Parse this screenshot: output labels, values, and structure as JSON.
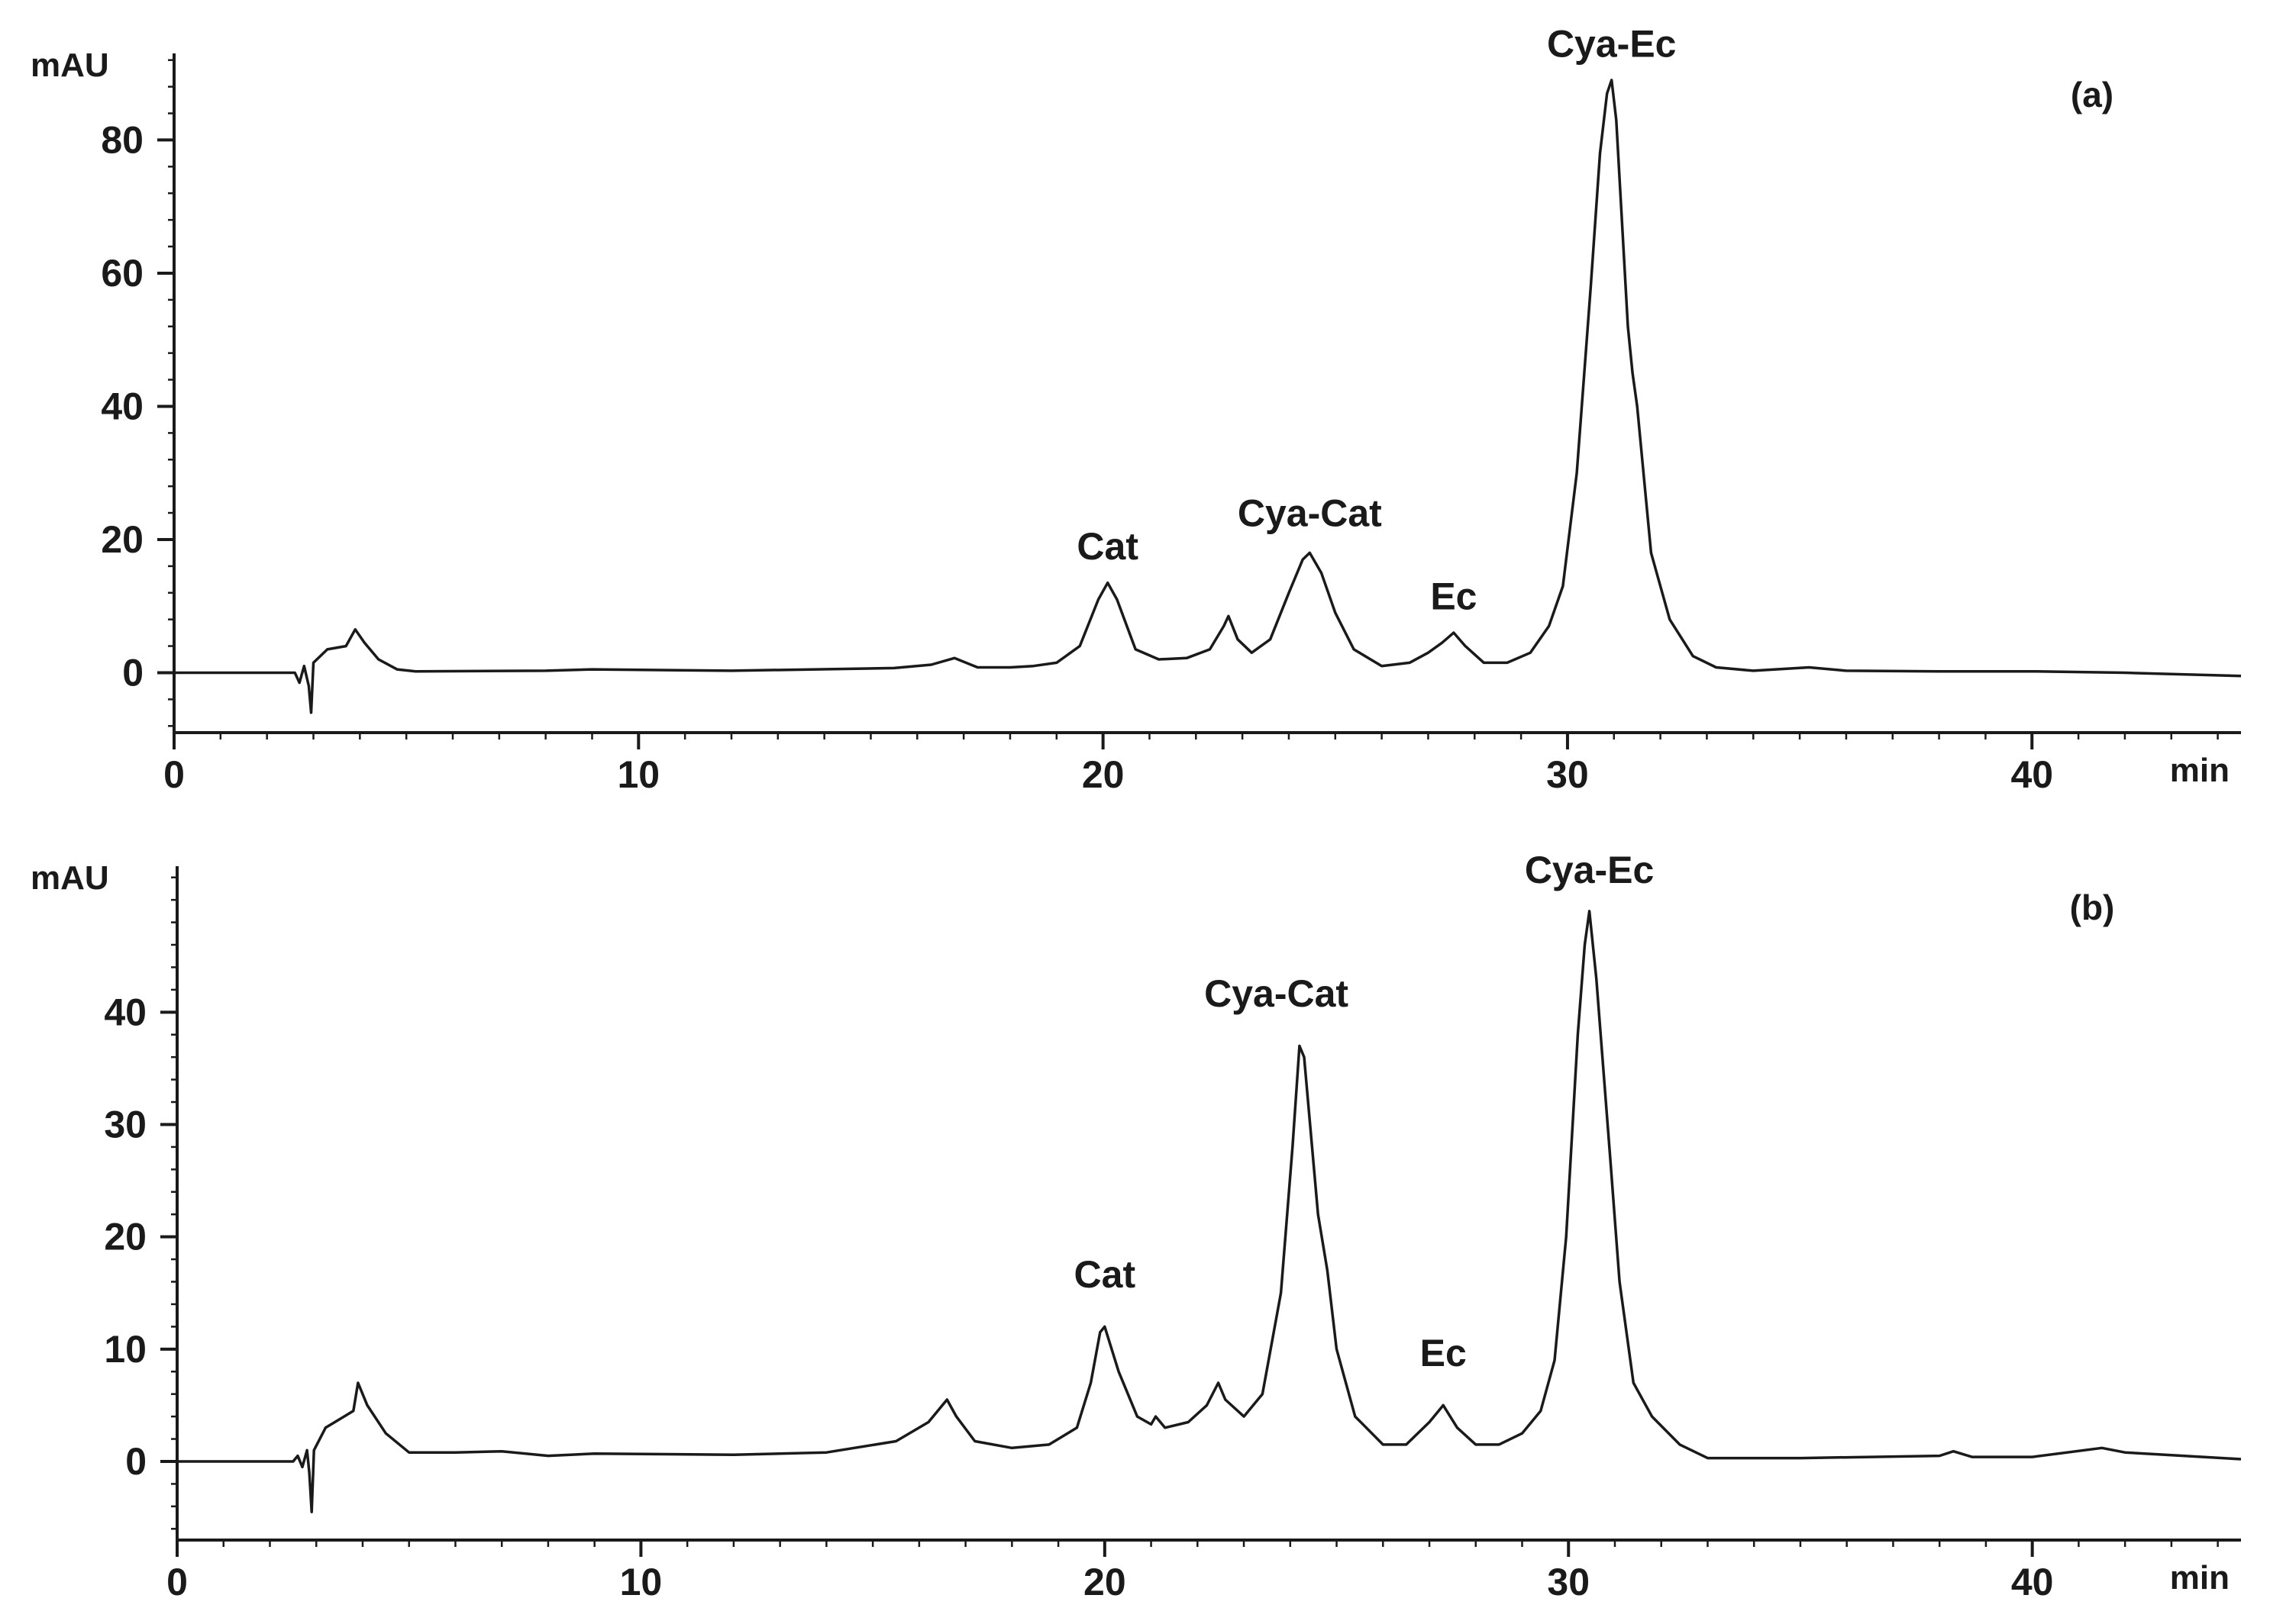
{
  "chart_data": [
    {
      "type": "line",
      "panel_label": "(a)",
      "xlabel": "min",
      "ylabel": "mAU",
      "xlim": [
        0,
        44.5
      ],
      "ylim": [
        -9,
        93
      ],
      "xticks": [
        0,
        10,
        20,
        30,
        40
      ],
      "yticks": [
        0,
        20,
        40,
        60,
        80
      ],
      "xtick_labels": [
        "0",
        "10",
        "20",
        "30",
        "40"
      ],
      "ytick_labels": [
        "0",
        "20",
        "40",
        "60",
        "80"
      ],
      "x_minor_step": 1,
      "y_minor_step": 4,
      "grid": false,
      "baseline": [
        [
          0,
          0
        ],
        [
          2.6,
          0
        ],
        [
          2.7,
          -1.5
        ],
        [
          2.8,
          1
        ],
        [
          2.9,
          -2
        ],
        [
          2.95,
          -6
        ],
        [
          3.0,
          1.5
        ],
        [
          3.3,
          3.5
        ],
        [
          3.7,
          4
        ],
        [
          3.9,
          6.5
        ],
        [
          4.1,
          4.5
        ],
        [
          4.4,
          2
        ],
        [
          4.8,
          0.5
        ],
        [
          5.2,
          0.2
        ],
        [
          8,
          0.3
        ],
        [
          9,
          0.5
        ],
        [
          12,
          0.3
        ],
        [
          15.5,
          0.7
        ],
        [
          16.3,
          1.2
        ],
        [
          16.8,
          2.2
        ],
        [
          17.3,
          0.8
        ],
        [
          18,
          0.8
        ],
        [
          18.5,
          1
        ],
        [
          19,
          1.5
        ],
        [
          19.5,
          4
        ],
        [
          19.9,
          11
        ],
        [
          20.1,
          13.5
        ],
        [
          20.3,
          11
        ],
        [
          20.7,
          3.5
        ],
        [
          21.2,
          2
        ],
        [
          21.8,
          2.2
        ],
        [
          22.3,
          3.5
        ],
        [
          22.6,
          7
        ],
        [
          22.7,
          8.5
        ],
        [
          22.9,
          5
        ],
        [
          23.2,
          3
        ],
        [
          23.6,
          5
        ],
        [
          24.0,
          12
        ],
        [
          24.3,
          17
        ],
        [
          24.45,
          18
        ],
        [
          24.7,
          15
        ],
        [
          25.0,
          9
        ],
        [
          25.4,
          3.5
        ],
        [
          26.0,
          1
        ],
        [
          26.6,
          1.5
        ],
        [
          27.0,
          3
        ],
        [
          27.3,
          4.5
        ],
        [
          27.55,
          6
        ],
        [
          27.8,
          4
        ],
        [
          28.2,
          1.5
        ],
        [
          28.7,
          1.5
        ],
        [
          29.2,
          3
        ],
        [
          29.6,
          7
        ],
        [
          29.9,
          13
        ],
        [
          30.2,
          30
        ],
        [
          30.5,
          58
        ],
        [
          30.7,
          78
        ],
        [
          30.85,
          87
        ],
        [
          30.95,
          89
        ],
        [
          31.05,
          83
        ],
        [
          31.3,
          52
        ],
        [
          31.4,
          45
        ],
        [
          31.5,
          40
        ],
        [
          31.8,
          18
        ],
        [
          32.2,
          8
        ],
        [
          32.7,
          2.5
        ],
        [
          33.2,
          0.8
        ],
        [
          34,
          0.3
        ],
        [
          35.2,
          0.8
        ],
        [
          36,
          0.3
        ],
        [
          38,
          0.2
        ],
        [
          40,
          0.2
        ],
        [
          42,
          0
        ],
        [
          44.5,
          -0.5
        ]
      ],
      "peak_labels": [
        {
          "text": "Cat",
          "x": 20.1,
          "y": 17
        },
        {
          "text": "Cya-Cat",
          "x": 24.45,
          "y": 22
        },
        {
          "text": "Ec",
          "x": 27.55,
          "y": 9.5
        },
        {
          "text": "Cya-Ec",
          "x": 30.95,
          "y": 92.5
        }
      ]
    },
    {
      "type": "line",
      "panel_label": "(b)",
      "xlabel": "min",
      "ylabel": "mAU",
      "xlim": [
        0,
        44.5
      ],
      "ylim": [
        -7,
        53
      ],
      "xticks": [
        0,
        10,
        20,
        30,
        40
      ],
      "yticks": [
        0,
        10,
        20,
        30,
        40
      ],
      "xtick_labels": [
        "0",
        "10",
        "20",
        "30",
        "40"
      ],
      "ytick_labels": [
        "0",
        "10",
        "20",
        "30",
        "40"
      ],
      "x_minor_step": 1,
      "y_minor_step": 2,
      "grid": false,
      "baseline": [
        [
          0,
          0
        ],
        [
          2.5,
          0
        ],
        [
          2.6,
          0.5
        ],
        [
          2.7,
          -0.5
        ],
        [
          2.8,
          1
        ],
        [
          2.85,
          -1
        ],
        [
          2.9,
          -4.5
        ],
        [
          2.95,
          1
        ],
        [
          3.2,
          3
        ],
        [
          3.6,
          4
        ],
        [
          3.8,
          4.5
        ],
        [
          3.9,
          7
        ],
        [
          4.1,
          5
        ],
        [
          4.5,
          2.5
        ],
        [
          5.0,
          0.8
        ],
        [
          6,
          0.8
        ],
        [
          7,
          0.9
        ],
        [
          8,
          0.5
        ],
        [
          9,
          0.7
        ],
        [
          12,
          0.6
        ],
        [
          14,
          0.8
        ],
        [
          15.5,
          1.8
        ],
        [
          16.2,
          3.5
        ],
        [
          16.6,
          5.5
        ],
        [
          16.8,
          4
        ],
        [
          17.2,
          1.8
        ],
        [
          18,
          1.2
        ],
        [
          18.8,
          1.5
        ],
        [
          19.4,
          3
        ],
        [
          19.7,
          7
        ],
        [
          19.9,
          11.5
        ],
        [
          20.0,
          12
        ],
        [
          20.3,
          8
        ],
        [
          20.7,
          4
        ],
        [
          21.0,
          3.3
        ],
        [
          21.1,
          4
        ],
        [
          21.3,
          3
        ],
        [
          21.8,
          3.5
        ],
        [
          22.2,
          5
        ],
        [
          22.45,
          7
        ],
        [
          22.6,
          5.5
        ],
        [
          23.0,
          4
        ],
        [
          23.4,
          6
        ],
        [
          23.8,
          15
        ],
        [
          24.05,
          28
        ],
        [
          24.2,
          37
        ],
        [
          24.3,
          36
        ],
        [
          24.6,
          22
        ],
        [
          24.8,
          17
        ],
        [
          25.0,
          10
        ],
        [
          25.4,
          4
        ],
        [
          26.0,
          1.5
        ],
        [
          26.5,
          1.5
        ],
        [
          27.0,
          3.5
        ],
        [
          27.3,
          5
        ],
        [
          27.6,
          3
        ],
        [
          28.0,
          1.5
        ],
        [
          28.5,
          1.5
        ],
        [
          29.0,
          2.5
        ],
        [
          29.4,
          4.5
        ],
        [
          29.7,
          9
        ],
        [
          29.95,
          20
        ],
        [
          30.2,
          38
        ],
        [
          30.35,
          46
        ],
        [
          30.45,
          49
        ],
        [
          30.6,
          43
        ],
        [
          30.9,
          27
        ],
        [
          31.1,
          16
        ],
        [
          31.4,
          7
        ],
        [
          31.8,
          4
        ],
        [
          32.4,
          1.5
        ],
        [
          33.0,
          0.3
        ],
        [
          35,
          0.3
        ],
        [
          38,
          0.5
        ],
        [
          38.3,
          0.9
        ],
        [
          38.7,
          0.4
        ],
        [
          40,
          0.4
        ],
        [
          41.5,
          1.2
        ],
        [
          42,
          0.8
        ],
        [
          44.5,
          0.2
        ]
      ],
      "peak_labels": [
        {
          "text": "Cat",
          "x": 20.0,
          "y": 15.5
        },
        {
          "text": "Cya-Cat",
          "x": 23.7,
          "y": 40.5
        },
        {
          "text": "Ec",
          "x": 27.3,
          "y": 8.5
        },
        {
          "text": "Cya-Ec",
          "x": 30.45,
          "y": 51.5
        }
      ]
    }
  ]
}
